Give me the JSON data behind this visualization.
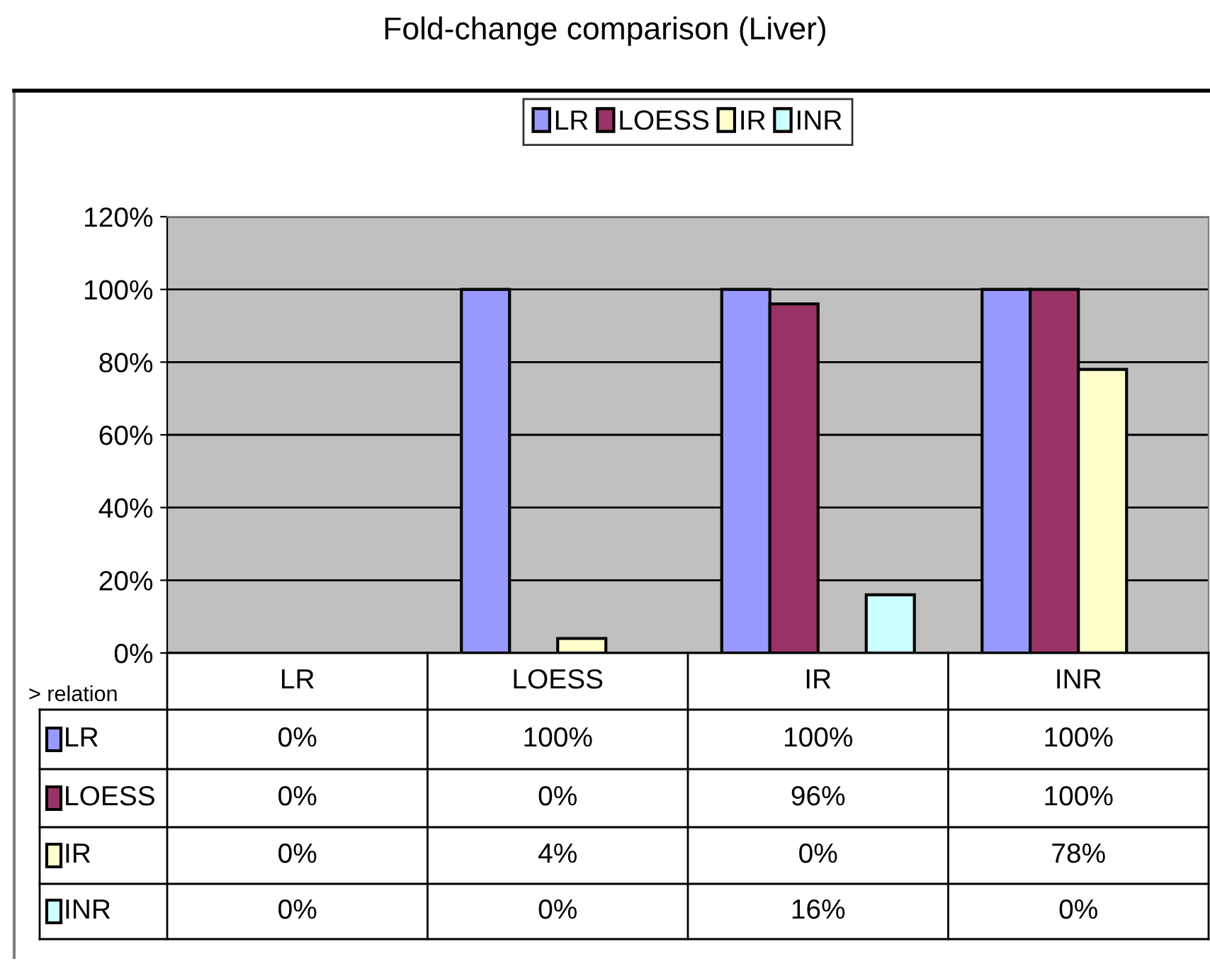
{
  "chart_data": {
    "type": "bar",
    "title": "Fold-change comparison (Liver)",
    "categories": [
      "LR",
      "LOESS",
      "IR",
      "INR"
    ],
    "series": [
      {
        "name": "LR",
        "color": "#9999ff",
        "values": [
          0,
          100,
          100,
          100
        ],
        "value_labels": [
          "0%",
          "100%",
          "100%",
          "100%"
        ]
      },
      {
        "name": "LOESS",
        "color": "#993366",
        "values": [
          0,
          0,
          96,
          100
        ],
        "value_labels": [
          "0%",
          "0%",
          "96%",
          "100%"
        ]
      },
      {
        "name": "IR",
        "color": "#ffffcc",
        "values": [
          0,
          4,
          0,
          78
        ],
        "value_labels": [
          "0%",
          "4%",
          "0%",
          "78%"
        ]
      },
      {
        "name": "INR",
        "color": "#ccffff",
        "values": [
          0,
          0,
          16,
          0
        ],
        "value_labels": [
          "0%",
          "0%",
          "16%",
          "0%"
        ]
      }
    ],
    "ylim": [
      0,
      120
    ],
    "yticks": [
      {
        "value": 0,
        "label": "0%"
      },
      {
        "value": 20,
        "label": "20%"
      },
      {
        "value": 40,
        "label": "40%"
      },
      {
        "value": 60,
        "label": "60%"
      },
      {
        "value": 80,
        "label": "80%"
      },
      {
        "value": 100,
        "label": "100%"
      },
      {
        "value": 120,
        "label": "120%"
      }
    ],
    "grid": "y",
    "legend": "top",
    "annotations": [
      "> relation"
    ]
  }
}
